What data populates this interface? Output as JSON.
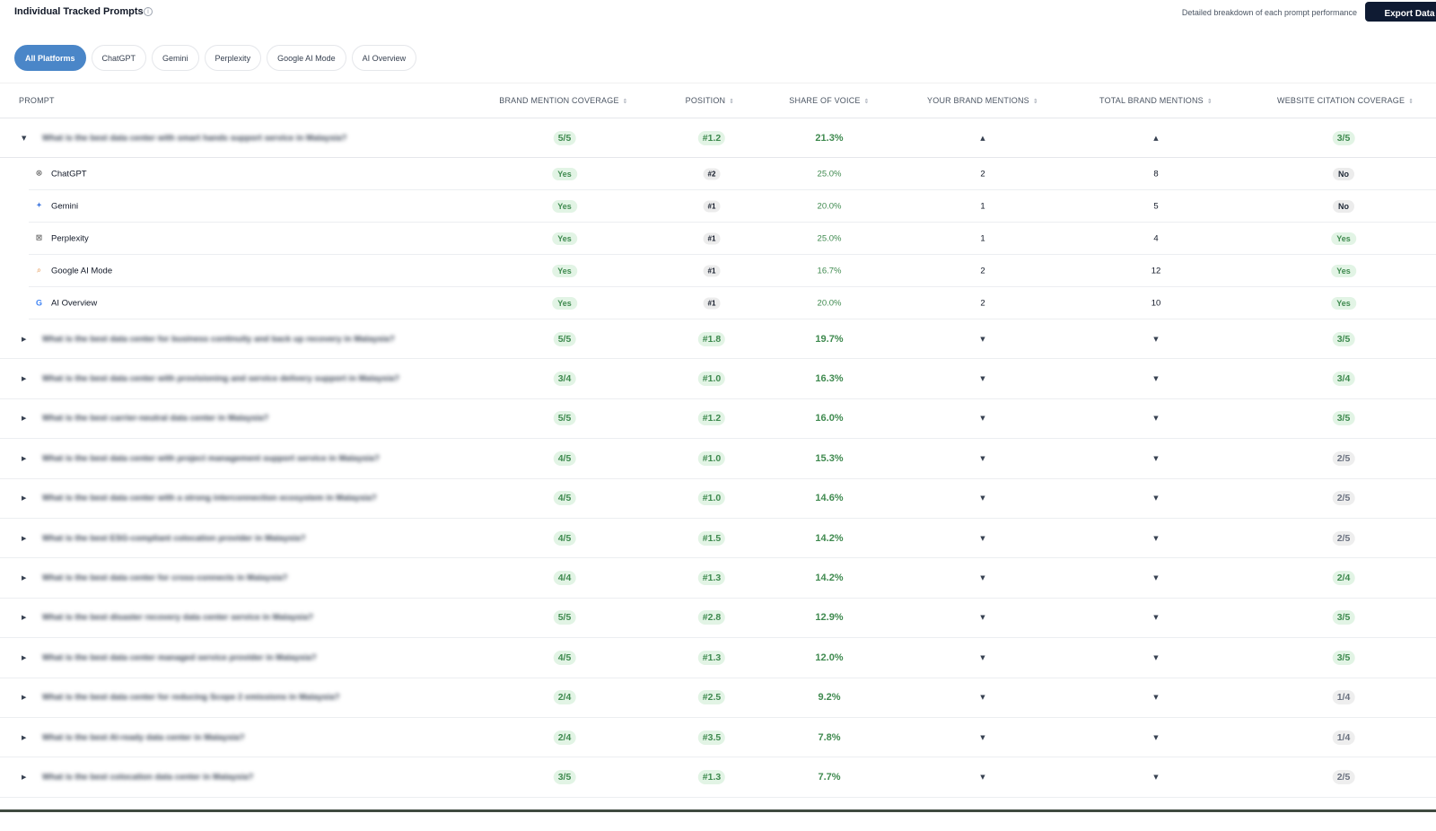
{
  "header": {
    "title": "Individual Tracked Prompts",
    "subtitle": "Detailed breakdown of each prompt performance",
    "export_label": "Export Data"
  },
  "tabs": [
    {
      "label": "All Platforms",
      "active": true
    },
    {
      "label": "ChatGPT",
      "active": false
    },
    {
      "label": "Gemini",
      "active": false
    },
    {
      "label": "Perplexity",
      "active": false
    },
    {
      "label": "Google AI Mode",
      "active": false
    },
    {
      "label": "AI Overview",
      "active": false
    }
  ],
  "columns": {
    "prompt": "PROMPT",
    "coverage": "BRAND MENTION COVERAGE",
    "position": "POSITION",
    "sov": "SHARE OF VOICE",
    "your_mentions": "YOUR BRAND MENTIONS",
    "total_mentions": "TOTAL BRAND MENTIONS",
    "citation": "WEBSITE CITATION COVERAGE"
  },
  "expanded": {
    "prompt": "What is the best data center with smart hands support service in Malaysia?",
    "coverage": "5/5",
    "position": "#1.2",
    "sov": "21.3%",
    "citation": "3/5",
    "platforms": [
      {
        "name": "ChatGPT",
        "icon": "chatgpt-icon",
        "mentioned": "Yes",
        "position": "#2",
        "sov": "25.0%",
        "your": "2",
        "total": "8",
        "cited": "No"
      },
      {
        "name": "Gemini",
        "icon": "gemini-icon",
        "mentioned": "Yes",
        "position": "#1",
        "sov": "20.0%",
        "your": "1",
        "total": "5",
        "cited": "No"
      },
      {
        "name": "Perplexity",
        "icon": "perplexity-icon",
        "mentioned": "Yes",
        "position": "#1",
        "sov": "25.0%",
        "your": "1",
        "total": "4",
        "cited": "Yes"
      },
      {
        "name": "Google AI Mode",
        "icon": "google-ai-mode-icon",
        "mentioned": "Yes",
        "position": "#1",
        "sov": "16.7%",
        "your": "2",
        "total": "12",
        "cited": "Yes"
      },
      {
        "name": "AI Overview",
        "icon": "google-icon",
        "mentioned": "Yes",
        "position": "#1",
        "sov": "20.0%",
        "your": "2",
        "total": "10",
        "cited": "Yes"
      }
    ]
  },
  "rows": [
    {
      "prompt": "What is the best data center for business continuity and back up recovery in Malaysia?",
      "coverage": "5/5",
      "position": "#1.8",
      "sov": "19.7%",
      "citation": "3/5",
      "cite_green": true
    },
    {
      "prompt": "What is the best data center with provisioning and service delivery support in Malaysia?",
      "coverage": "3/4",
      "position": "#1.0",
      "sov": "16.3%",
      "citation": "3/4",
      "cite_green": true
    },
    {
      "prompt": "What is the best carrier-neutral data center in Malaysia?",
      "coverage": "5/5",
      "position": "#1.2",
      "sov": "16.0%",
      "citation": "3/5",
      "cite_green": true
    },
    {
      "prompt": "What is the best data center with project management support service in Malaysia?",
      "coverage": "4/5",
      "position": "#1.0",
      "sov": "15.3%",
      "citation": "2/5",
      "cite_green": false
    },
    {
      "prompt": "What is the best data center with a strong interconnection ecosystem in Malaysia?",
      "coverage": "4/5",
      "position": "#1.0",
      "sov": "14.6%",
      "citation": "2/5",
      "cite_green": false
    },
    {
      "prompt": "What is the best ESG-compliant colocation provider in Malaysia?",
      "coverage": "4/5",
      "position": "#1.5",
      "sov": "14.2%",
      "citation": "2/5",
      "cite_green": false
    },
    {
      "prompt": "What is the best data center for cross-connects in Malaysia?",
      "coverage": "4/4",
      "position": "#1.3",
      "sov": "14.2%",
      "citation": "2/4",
      "cite_green": true
    },
    {
      "prompt": "What is the best disaster recovery data center service in Malaysia?",
      "coverage": "5/5",
      "position": "#2.8",
      "sov": "12.9%",
      "citation": "3/5",
      "cite_green": true
    },
    {
      "prompt": "What is the best data center managed service provider in Malaysia?",
      "coverage": "4/5",
      "position": "#1.3",
      "sov": "12.0%",
      "citation": "3/5",
      "cite_green": true
    },
    {
      "prompt": "What is the best data center for reducing Scope 2 emissions in Malaysia?",
      "coverage": "2/4",
      "position": "#2.5",
      "sov": "9.2%",
      "citation": "1/4",
      "cite_green": false
    },
    {
      "prompt": "What is the best AI-ready data center in Malaysia?",
      "coverage": "2/4",
      "position": "#3.5",
      "sov": "7.8%",
      "citation": "1/4",
      "cite_green": false
    },
    {
      "prompt": "What is the best colocation data center in Malaysia?",
      "coverage": "3/5",
      "position": "#1.3",
      "sov": "7.7%",
      "citation": "2/5",
      "cite_green": false
    }
  ]
}
